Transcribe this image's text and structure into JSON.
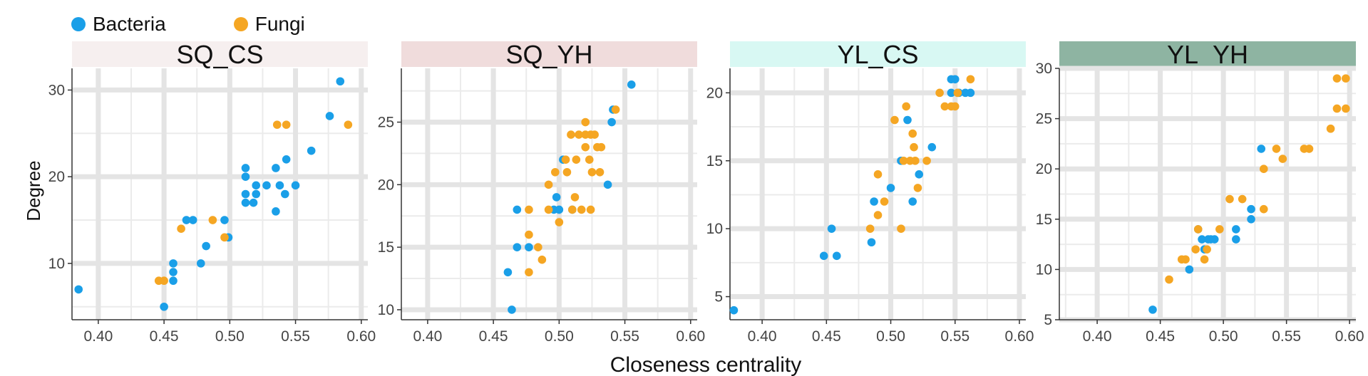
{
  "legend": {
    "items": [
      {
        "label": "Bacteria",
        "color": "#1a9fe8"
      },
      {
        "label": "Fungi",
        "color": "#f5a623"
      }
    ]
  },
  "chart_data": {
    "type": "scatter",
    "xlabel": "Closeness centrality",
    "ylabel": "Degree",
    "grid": true,
    "legend_position": "top-left",
    "panels": [
      {
        "title": "SQ_CS",
        "strip_color": "#f6efef",
        "xlim": [
          0.38,
          0.605
        ],
        "ylim": [
          3.5,
          32.5
        ],
        "xticks": [
          "0.40",
          "0.45",
          "0.50",
          "0.55",
          "0.60"
        ],
        "yticks": [
          10,
          20,
          30
        ],
        "series": [
          {
            "name": "Bacteria",
            "points": [
              [
                0.385,
                7
              ],
              [
                0.45,
                5
              ],
              [
                0.457,
                8
              ],
              [
                0.457,
                9
              ],
              [
                0.457,
                10
              ],
              [
                0.467,
                15
              ],
              [
                0.472,
                15
              ],
              [
                0.478,
                10
              ],
              [
                0.482,
                12
              ],
              [
                0.496,
                15
              ],
              [
                0.499,
                13
              ],
              [
                0.512,
                21
              ],
              [
                0.512,
                20
              ],
              [
                0.512,
                18
              ],
              [
                0.512,
                17
              ],
              [
                0.518,
                17
              ],
              [
                0.52,
                19
              ],
              [
                0.52,
                18
              ],
              [
                0.528,
                19
              ],
              [
                0.535,
                21
              ],
              [
                0.535,
                16
              ],
              [
                0.538,
                19
              ],
              [
                0.542,
                18
              ],
              [
                0.543,
                22
              ],
              [
                0.55,
                19
              ],
              [
                0.562,
                23
              ],
              [
                0.576,
                27
              ],
              [
                0.584,
                31
              ]
            ]
          },
          {
            "name": "Fungi",
            "points": [
              [
                0.446,
                8
              ],
              [
                0.45,
                8
              ],
              [
                0.463,
                14
              ],
              [
                0.487,
                15
              ],
              [
                0.496,
                13
              ],
              [
                0.536,
                26
              ],
              [
                0.543,
                26
              ],
              [
                0.59,
                26
              ]
            ]
          }
        ]
      },
      {
        "title": "SQ_YH",
        "strip_color": "#f0dcdc",
        "xlim": [
          0.38,
          0.605
        ],
        "ylim": [
          9.2,
          29.3
        ],
        "xticks": [
          "0.40",
          "0.45",
          "0.50",
          "0.55",
          "0.60"
        ],
        "yticks": [
          10,
          15,
          20,
          25
        ],
        "series": [
          {
            "name": "Bacteria",
            "points": [
              [
                0.461,
                13
              ],
              [
                0.464,
                10
              ],
              [
                0.468,
                18
              ],
              [
                0.468,
                15
              ],
              [
                0.477,
                15
              ],
              [
                0.496,
                18
              ],
              [
                0.498,
                19
              ],
              [
                0.5,
                18
              ],
              [
                0.503,
                22
              ],
              [
                0.51,
                18
              ],
              [
                0.537,
                20
              ],
              [
                0.54,
                25
              ],
              [
                0.541,
                26
              ],
              [
                0.555,
                28
              ]
            ]
          },
          {
            "name": "Fungi",
            "points": [
              [
                0.477,
                18
              ],
              [
                0.477,
                16
              ],
              [
                0.477,
                13
              ],
              [
                0.484,
                15
              ],
              [
                0.487,
                14
              ],
              [
                0.492,
                20
              ],
              [
                0.492,
                18
              ],
              [
                0.497,
                21
              ],
              [
                0.5,
                17
              ],
              [
                0.505,
                22
              ],
              [
                0.506,
                21
              ],
              [
                0.509,
                24
              ],
              [
                0.51,
                18
              ],
              [
                0.512,
                19
              ],
              [
                0.513,
                22
              ],
              [
                0.515,
                24
              ],
              [
                0.517,
                18
              ],
              [
                0.52,
                25
              ],
              [
                0.52,
                23
              ],
              [
                0.52,
                24
              ],
              [
                0.523,
                22
              ],
              [
                0.524,
                24
              ],
              [
                0.524,
                18
              ],
              [
                0.525,
                21
              ],
              [
                0.527,
                24
              ],
              [
                0.529,
                23
              ],
              [
                0.531,
                21
              ],
              [
                0.532,
                23
              ],
              [
                0.543,
                26
              ]
            ]
          }
        ]
      },
      {
        "title": "YL_CS",
        "strip_color": "#d8f8f3",
        "xlim": [
          0.375,
          0.605
        ],
        "ylim": [
          3.3,
          21.8
        ],
        "xticks": [
          "0.40",
          "0.45",
          "0.50",
          "0.55",
          "0.60"
        ],
        "yticks": [
          5,
          10,
          15,
          20
        ],
        "series": [
          {
            "name": "Bacteria",
            "points": [
              [
                0.378,
                4
              ],
              [
                0.448,
                8
              ],
              [
                0.454,
                10
              ],
              [
                0.458,
                8
              ],
              [
                0.485,
                9
              ],
              [
                0.487,
                12
              ],
              [
                0.5,
                13
              ],
              [
                0.508,
                15
              ],
              [
                0.513,
                18
              ],
              [
                0.517,
                12
              ],
              [
                0.522,
                14
              ],
              [
                0.532,
                16
              ],
              [
                0.547,
                20
              ],
              [
                0.547,
                21
              ],
              [
                0.55,
                21
              ],
              [
                0.553,
                20
              ],
              [
                0.558,
                20
              ],
              [
                0.562,
                20
              ]
            ]
          },
          {
            "name": "Fungi",
            "points": [
              [
                0.484,
                10
              ],
              [
                0.49,
                11
              ],
              [
                0.49,
                14
              ],
              [
                0.495,
                12
              ],
              [
                0.503,
                18
              ],
              [
                0.508,
                10
              ],
              [
                0.51,
                15
              ],
              [
                0.512,
                19
              ],
              [
                0.515,
                15
              ],
              [
                0.517,
                17
              ],
              [
                0.518,
                16
              ],
              [
                0.519,
                15
              ],
              [
                0.521,
                13
              ],
              [
                0.528,
                15
              ],
              [
                0.538,
                20
              ],
              [
                0.542,
                19
              ],
              [
                0.547,
                19
              ],
              [
                0.55,
                19
              ],
              [
                0.552,
                20
              ],
              [
                0.562,
                21
              ]
            ]
          }
        ]
      },
      {
        "title": "YL_YH",
        "strip_color": "#8eb4a2",
        "xlim": [
          0.37,
          0.605
        ],
        "ylim": [
          5,
          30
        ],
        "xticks": [
          "0.40",
          "0.45",
          "0.50",
          "0.55",
          "0.60"
        ],
        "yticks": [
          5,
          10,
          15,
          20,
          25,
          30
        ],
        "series": [
          {
            "name": "Bacteria",
            "points": [
              [
                0.444,
                6
              ],
              [
                0.473,
                10
              ],
              [
                0.48,
                14
              ],
              [
                0.483,
                13
              ],
              [
                0.485,
                12
              ],
              [
                0.488,
                13
              ],
              [
                0.49,
                13
              ],
              [
                0.493,
                13
              ],
              [
                0.51,
                14
              ],
              [
                0.51,
                13
              ],
              [
                0.522,
                16
              ],
              [
                0.522,
                15
              ],
              [
                0.53,
                22
              ]
            ]
          },
          {
            "name": "Fungi",
            "points": [
              [
                0.457,
                9
              ],
              [
                0.467,
                11
              ],
              [
                0.47,
                11
              ],
              [
                0.478,
                12
              ],
              [
                0.48,
                14
              ],
              [
                0.485,
                11
              ],
              [
                0.487,
                12
              ],
              [
                0.497,
                14
              ],
              [
                0.505,
                17
              ],
              [
                0.515,
                17
              ],
              [
                0.532,
                20
              ],
              [
                0.532,
                16
              ],
              [
                0.542,
                22
              ],
              [
                0.547,
                21
              ],
              [
                0.564,
                22
              ],
              [
                0.568,
                22
              ],
              [
                0.585,
                24
              ],
              [
                0.59,
                29
              ],
              [
                0.59,
                26
              ],
              [
                0.597,
                29
              ],
              [
                0.597,
                26
              ]
            ]
          }
        ]
      }
    ]
  }
}
